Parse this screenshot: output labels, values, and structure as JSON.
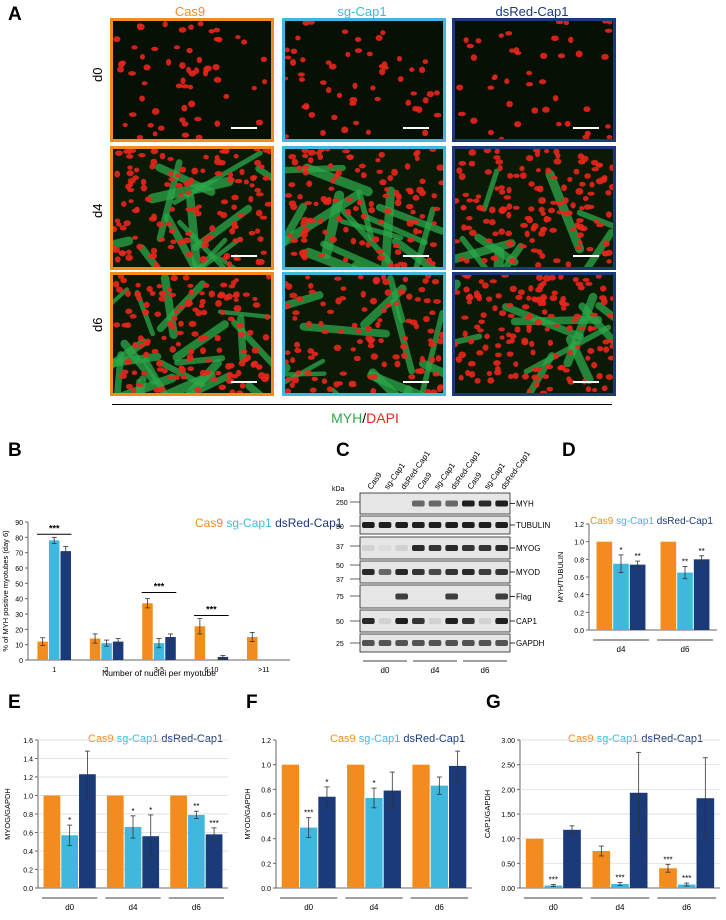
{
  "panelA": {
    "letter": "A",
    "columns": [
      "Cas9",
      "sg-Cap1",
      "dsRed-Cap1"
    ],
    "rows": [
      "d0",
      "d4",
      "d6"
    ],
    "stain": {
      "green": "MYH",
      "sep": "/",
      "red": "DAPI"
    }
  },
  "colors": {
    "cas9": "#F28C1E",
    "sg": "#40B8DE",
    "ds": "#1B3A7A",
    "myh": "#2CA84A",
    "dapi": "#E8261C"
  },
  "panelB": {
    "letter": "B",
    "legend": [
      "Cas9",
      "sg-Cap1",
      "dsRed-Cap1"
    ],
    "ylabel": "% of MYH positive myotubes (day 6)",
    "xlabel": "Number of nuclei per myotube",
    "sig": [
      "***",
      "***",
      "***"
    ]
  },
  "panelC": {
    "letter": "C",
    "kda": "kDa",
    "lanes": [
      "Cas9",
      "sg-Cap1",
      "dsRed-Cap1",
      "Cas9",
      "sg-Cap1",
      "dsRed-Cap1",
      "Cas9",
      "sg-Cap1",
      "dsRed-Cap1"
    ],
    "proteins": [
      "MYH",
      "TUBULIN",
      "MYOG",
      "MYOD",
      "Flag",
      "CAP1",
      "GAPDH"
    ],
    "markers": [
      "250",
      "50",
      "37",
      "50",
      "37",
      "75",
      "50",
      "25"
    ],
    "groups": [
      "d0",
      "d4",
      "d6"
    ]
  },
  "panelD": {
    "letter": "D",
    "legend": [
      "Cas9",
      "sg-Cap1",
      "dsRed-Cap1"
    ],
    "ylabel": "MYH/TUBULIN"
  },
  "panelE": {
    "letter": "E",
    "legend": [
      "Cas9",
      "sg-Cap1",
      "dsRed-Cap1"
    ],
    "ylabel": "MYOG/GAPDH"
  },
  "panelF": {
    "letter": "F",
    "legend": [
      "Cas9",
      "sg-Cap1",
      "dsRed-Cap1"
    ],
    "ylabel": "MYOD/GAPDH"
  },
  "panelG": {
    "letter": "G",
    "legend": [
      "Cas9",
      "sg-Cap1",
      "dsRed-Cap1"
    ],
    "ylabel": "CAP1/GAPDH"
  },
  "chart_data": [
    {
      "id": "B",
      "type": "bar",
      "categories": [
        "1",
        "2",
        "3-5",
        "6-10",
        ">11"
      ],
      "series": [
        {
          "name": "Cas9",
          "values": [
            12,
            14,
            37,
            22,
            15
          ],
          "err": [
            2.5,
            3,
            3,
            5,
            3
          ]
        },
        {
          "name": "sg-Cap1",
          "values": [
            78,
            11,
            11,
            0,
            0
          ],
          "err": [
            2,
            2,
            3,
            0,
            0
          ]
        },
        {
          "name": "dsRed-Cap1",
          "values": [
            71,
            12,
            15,
            2,
            0
          ],
          "err": [
            3,
            2,
            2,
            1,
            0
          ]
        }
      ],
      "ylim": [
        0,
        90
      ],
      "yticks": [
        "0",
        "10",
        "20",
        "30",
        "40",
        "50",
        "60",
        "70",
        "80",
        "90"
      ],
      "ylabel": "% of MYH positive myotubes (day 6)",
      "xlabel": "Number of nuclei per myotube",
      "annotations": [
        "***",
        "***",
        "***"
      ]
    },
    {
      "id": "D",
      "type": "bar",
      "categories": [
        "d4",
        "d6"
      ],
      "series": [
        {
          "name": "Cas9",
          "values": [
            1.0,
            1.0
          ],
          "err": [
            0,
            0
          ]
        },
        {
          "name": "sg-Cap1",
          "values": [
            0.75,
            0.65
          ],
          "err": [
            0.1,
            0.07
          ]
        },
        {
          "name": "dsRed-Cap1",
          "values": [
            0.74,
            0.8
          ],
          "err": [
            0.04,
            0.04
          ]
        }
      ],
      "sig": [
        [
          "",
          "*",
          "**"
        ],
        [
          "",
          "**",
          "**"
        ]
      ],
      "ylim": [
        0,
        1.2
      ],
      "yticks": [
        "0.0",
        "0.2",
        "0.4",
        "0.6",
        "0.8",
        "1.0",
        "1.2"
      ],
      "ylabel": "MYH/TUBULIN"
    },
    {
      "id": "E",
      "type": "bar",
      "categories": [
        "d0",
        "d4",
        "d6"
      ],
      "series": [
        {
          "name": "Cas9",
          "values": [
            1.0,
            1.0,
            1.0
          ],
          "err": [
            0,
            0,
            0
          ]
        },
        {
          "name": "sg-Cap1",
          "values": [
            0.57,
            0.66,
            0.79
          ],
          "err": [
            0.11,
            0.12,
            0.04
          ]
        },
        {
          "name": "dsRed-Cap1",
          "values": [
            1.23,
            0.56,
            0.58
          ],
          "err": [
            0.25,
            0.23,
            0.07
          ]
        }
      ],
      "sig": [
        [
          "",
          "*",
          ""
        ],
        [
          "",
          "*",
          "*"
        ],
        [
          "",
          "**",
          "***"
        ]
      ],
      "ylim": [
        0,
        1.6
      ],
      "yticks": [
        "0.0",
        "0.2",
        "0.4",
        "0.6",
        "0.8",
        "1.0",
        "1.2",
        "1.4",
        "1.6"
      ],
      "ylabel": "MYOG/GAPDH"
    },
    {
      "id": "F",
      "type": "bar",
      "categories": [
        "d0",
        "d4",
        "d6"
      ],
      "series": [
        {
          "name": "Cas9",
          "values": [
            1.0,
            1.0,
            1.0
          ],
          "err": [
            0,
            0,
            0
          ]
        },
        {
          "name": "sg-Cap1",
          "values": [
            0.49,
            0.73,
            0.83
          ],
          "err": [
            0.08,
            0.08,
            0.07
          ]
        },
        {
          "name": "dsRed-Cap1",
          "values": [
            0.74,
            0.79,
            0.99
          ],
          "err": [
            0.08,
            0.15,
            0.12
          ]
        }
      ],
      "sig": [
        [
          "",
          "***",
          "*"
        ],
        [
          "",
          "*",
          ""
        ],
        [
          "",
          "",
          ""
        ]
      ],
      "ylim": [
        0,
        1.2
      ],
      "yticks": [
        "0.0",
        "0.2",
        "0.4",
        "0.6",
        "0.8",
        "1.0",
        "1.2"
      ],
      "ylabel": "MYOD/GAPDH"
    },
    {
      "id": "G",
      "type": "bar",
      "categories": [
        "d0",
        "d4",
        "d6"
      ],
      "series": [
        {
          "name": "Cas9",
          "values": [
            1.0,
            0.75,
            0.4
          ],
          "err": [
            0,
            0.1,
            0.08
          ]
        },
        {
          "name": "sg-Cap1",
          "values": [
            0.05,
            0.08,
            0.07
          ],
          "err": [
            0.02,
            0.03,
            0.03
          ]
        },
        {
          "name": "dsRed-Cap1",
          "values": [
            1.18,
            1.93,
            1.82
          ],
          "err": [
            0.08,
            0.82,
            0.82
          ]
        }
      ],
      "sig": [
        [
          "",
          "***",
          ""
        ],
        [
          "",
          "***",
          ""
        ],
        [
          "***",
          "***",
          ""
        ]
      ],
      "ylim": [
        0,
        3.0
      ],
      "yticks": [
        "0.00",
        "0.50",
        "1.00",
        "1.50",
        "2.00",
        "2.50",
        "3.00"
      ],
      "ylabel": "CAP1/GAPDH"
    }
  ]
}
